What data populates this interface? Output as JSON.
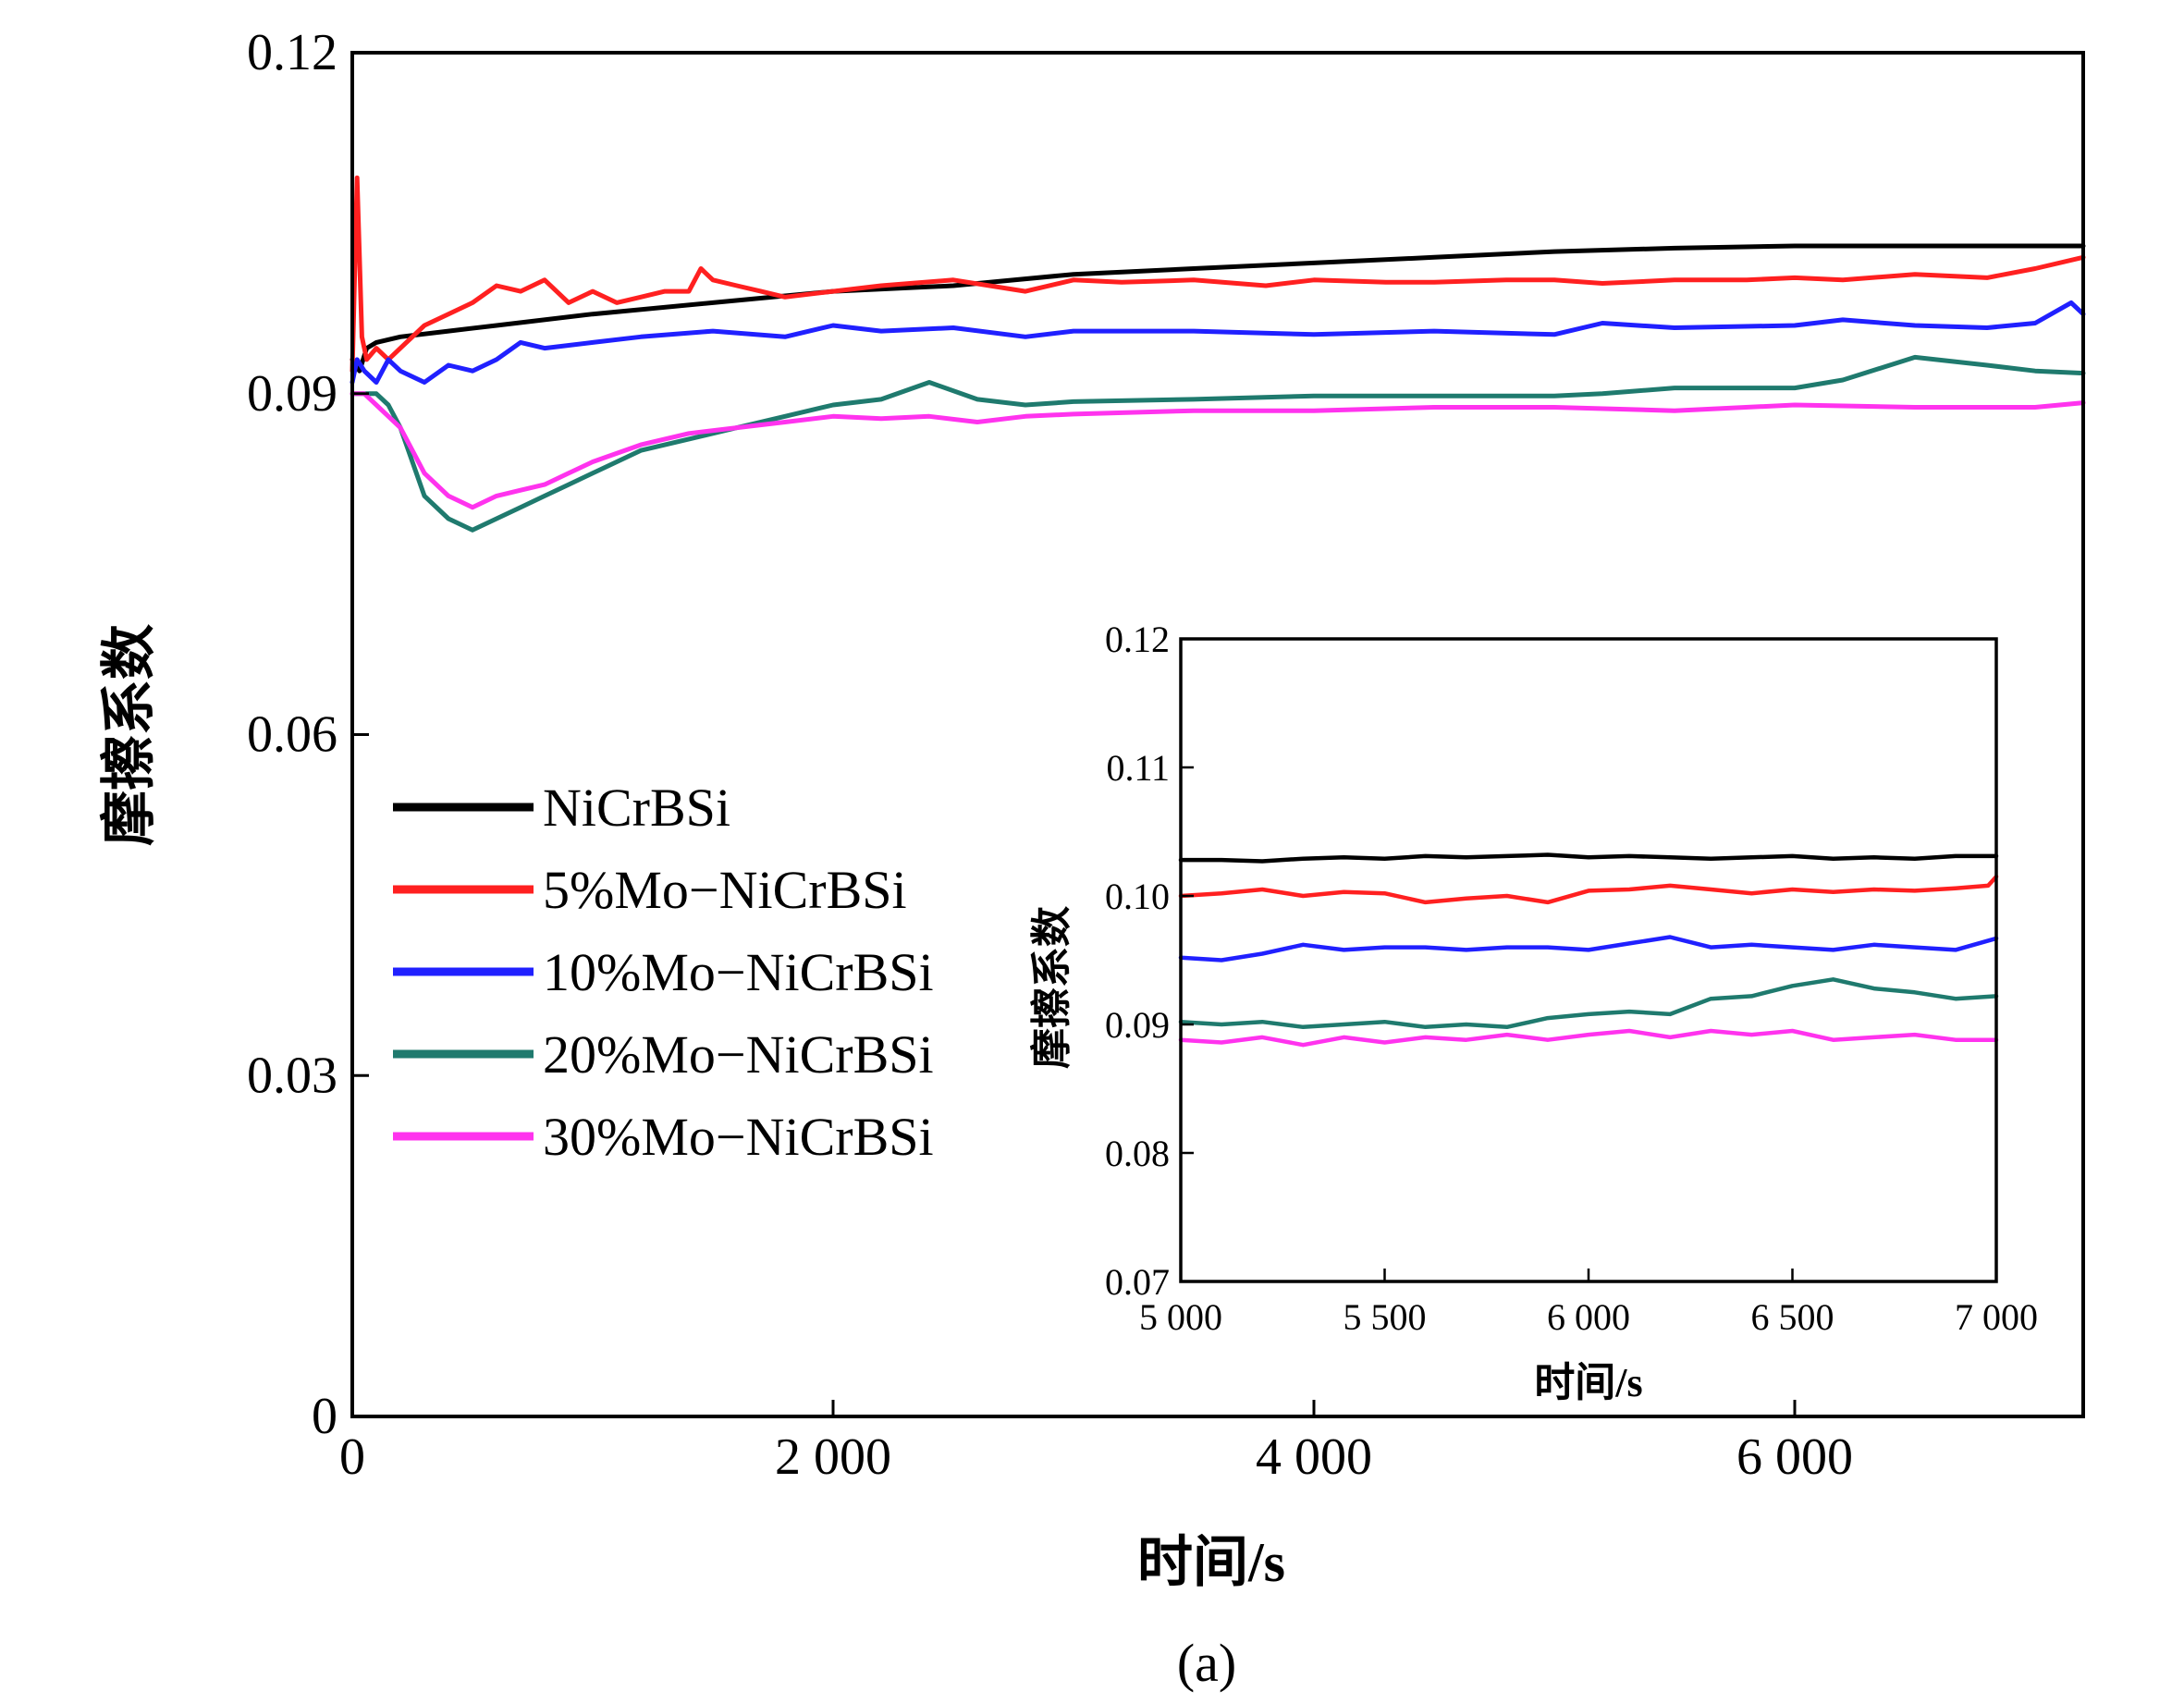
{
  "caption": "(a)",
  "chart_data": [
    {
      "id": "main",
      "type": "line",
      "xlabel": "时间/s",
      "ylabel": "摩擦系数",
      "xlim": [
        0,
        7200
      ],
      "ylim": [
        0,
        0.12
      ],
      "x_ticks": [
        0,
        2000,
        4000,
        6000
      ],
      "x_tick_labels": [
        "0",
        "2 000",
        "4 000",
        "6 000"
      ],
      "y_ticks": [
        0,
        0.03,
        0.06,
        0.09,
        0.12
      ],
      "y_tick_labels": [
        "0",
        "0.03",
        "0.06",
        "0.09",
        "0.12"
      ],
      "grid": false,
      "legend_position": "left-middle",
      "series": [
        {
          "name": "NiCrBSi",
          "color": "#000000",
          "x": [
            0,
            30,
            60,
            100,
            200,
            400,
            600,
            1000,
            1500,
            2000,
            2500,
            3000,
            3500,
            4000,
            4500,
            5000,
            5500,
            6000,
            6500,
            7000,
            7200
          ],
          "y": [
            0.093,
            0.092,
            0.094,
            0.0945,
            0.095,
            0.0955,
            0.096,
            0.097,
            0.098,
            0.099,
            0.0995,
            0.1005,
            0.101,
            0.1015,
            0.102,
            0.1025,
            0.1028,
            0.103,
            0.103,
            0.103,
            0.103
          ]
        },
        {
          "name": "5%Mo−NiCrBSi",
          "color": "#ff2020",
          "x": [
            0,
            20,
            40,
            60,
            100,
            150,
            200,
            300,
            400,
            500,
            600,
            700,
            800,
            900,
            1000,
            1100,
            1200,
            1300,
            1400,
            1450,
            1500,
            1600,
            1700,
            1800,
            2000,
            2200,
            2500,
            2800,
            3000,
            3200,
            3500,
            3800,
            4000,
            4300,
            4500,
            4800,
            5000,
            5200,
            5500,
            5800,
            6000,
            6200,
            6500,
            6800,
            7000,
            7200
          ],
          "y": [
            0.092,
            0.109,
            0.095,
            0.093,
            0.094,
            0.093,
            0.094,
            0.096,
            0.097,
            0.098,
            0.0995,
            0.099,
            0.1,
            0.098,
            0.099,
            0.098,
            0.0985,
            0.099,
            0.099,
            0.101,
            0.1,
            0.0995,
            0.099,
            0.0985,
            0.099,
            0.0995,
            0.1,
            0.099,
            0.1,
            0.0998,
            0.1,
            0.0995,
            0.1,
            0.0998,
            0.0998,
            0.1,
            0.1,
            0.0997,
            0.1,
            0.1,
            0.1002,
            0.1,
            0.1005,
            0.1002,
            0.101,
            0.102
          ]
        },
        {
          "name": "10%Mo−NiCrBSi",
          "color": "#2020ff",
          "x": [
            0,
            20,
            50,
            100,
            150,
            200,
            300,
            400,
            500,
            600,
            700,
            800,
            1000,
            1200,
            1500,
            1800,
            2000,
            2200,
            2500,
            2800,
            3000,
            3500,
            4000,
            4500,
            5000,
            5200,
            5500,
            6000,
            6200,
            6500,
            6800,
            7000,
            7150,
            7200
          ],
          "y": [
            0.091,
            0.093,
            0.092,
            0.091,
            0.093,
            0.092,
            0.091,
            0.0925,
            0.092,
            0.093,
            0.0945,
            0.094,
            0.0945,
            0.095,
            0.0955,
            0.095,
            0.096,
            0.0955,
            0.0958,
            0.095,
            0.0955,
            0.0955,
            0.0952,
            0.0955,
            0.0952,
            0.0962,
            0.0958,
            0.096,
            0.0965,
            0.096,
            0.0958,
            0.0962,
            0.098,
            0.097
          ]
        },
        {
          "name": "20%Mo−NiCrBSi",
          "color": "#1f7a6e",
          "x": [
            0,
            50,
            100,
            150,
            200,
            300,
            400,
            500,
            600,
            700,
            800,
            900,
            1000,
            1200,
            1400,
            1600,
            1800,
            2000,
            2200,
            2400,
            2600,
            2800,
            3000,
            3500,
            4000,
            4500,
            5000,
            5200,
            5500,
            6000,
            6200,
            6500,
            6800,
            7000,
            7200
          ],
          "y": [
            0.09,
            0.09,
            0.09,
            0.089,
            0.087,
            0.081,
            0.079,
            0.078,
            0.079,
            0.08,
            0.081,
            0.082,
            0.083,
            0.085,
            0.086,
            0.087,
            0.088,
            0.089,
            0.0895,
            0.091,
            0.0895,
            0.089,
            0.0893,
            0.0895,
            0.0898,
            0.0898,
            0.0898,
            0.09,
            0.0905,
            0.0905,
            0.0912,
            0.0932,
            0.0925,
            0.092,
            0.0918
          ]
        },
        {
          "name": "30%Mo−NiCrBSi",
          "color": "#ff33ee",
          "x": [
            0,
            50,
            100,
            150,
            200,
            300,
            400,
            500,
            600,
            700,
            800,
            900,
            1000,
            1200,
            1400,
            1600,
            1800,
            2000,
            2200,
            2400,
            2600,
            2800,
            3000,
            3500,
            4000,
            4500,
            5000,
            5500,
            6000,
            6500,
            7000,
            7200
          ],
          "y": [
            0.09,
            0.09,
            0.089,
            0.088,
            0.087,
            0.083,
            0.081,
            0.08,
            0.081,
            0.0815,
            0.082,
            0.083,
            0.084,
            0.0855,
            0.0865,
            0.087,
            0.0875,
            0.088,
            0.0878,
            0.088,
            0.0875,
            0.088,
            0.0882,
            0.0885,
            0.0885,
            0.0888,
            0.0888,
            0.0885,
            0.089,
            0.0888,
            0.0888,
            0.0892
          ]
        }
      ]
    },
    {
      "id": "inset",
      "type": "line",
      "xlabel": "时间/s",
      "ylabel": "摩擦系数",
      "xlim": [
        5000,
        7000
      ],
      "ylim": [
        0.07,
        0.12
      ],
      "x_ticks": [
        5000,
        5500,
        6000,
        6500,
        7000
      ],
      "x_tick_labels": [
        "5 000",
        "5 500",
        "6 000",
        "6 500",
        "7 000"
      ],
      "y_ticks": [
        0.07,
        0.08,
        0.09,
        0.1,
        0.11,
        0.12
      ],
      "y_tick_labels": [
        "0.07",
        "0.08",
        "0.09",
        "0.10",
        "0.11",
        "0.12"
      ],
      "grid": false,
      "series": [
        {
          "color": "#000000",
          "x": [
            5000,
            5100,
            5200,
            5300,
            5400,
            5500,
            5600,
            5700,
            5800,
            5900,
            6000,
            6100,
            6200,
            6300,
            6400,
            6500,
            6600,
            6700,
            6800,
            6900,
            7000
          ],
          "y": [
            0.1028,
            0.1028,
            0.1027,
            0.1029,
            0.103,
            0.1029,
            0.1031,
            0.103,
            0.1031,
            0.1032,
            0.103,
            0.1031,
            0.103,
            0.1029,
            0.103,
            0.1031,
            0.1029,
            0.103,
            0.1029,
            0.1031,
            0.1031
          ]
        },
        {
          "color": "#ff2020",
          "x": [
            5000,
            5100,
            5200,
            5300,
            5400,
            5500,
            5600,
            5700,
            5800,
            5900,
            6000,
            6100,
            6200,
            6300,
            6400,
            6500,
            6600,
            6700,
            6800,
            6900,
            6980,
            7000
          ],
          "y": [
            0.1,
            0.1002,
            0.1005,
            0.1,
            0.1003,
            0.1002,
            0.0995,
            0.0998,
            0.1,
            0.0995,
            0.1004,
            0.1005,
            0.1008,
            0.1005,
            0.1002,
            0.1005,
            0.1003,
            0.1005,
            0.1004,
            0.1006,
            0.1008,
            0.1015
          ]
        },
        {
          "color": "#2020ff",
          "x": [
            5000,
            5100,
            5200,
            5300,
            5400,
            5500,
            5600,
            5700,
            5800,
            5900,
            6000,
            6100,
            6200,
            6300,
            6400,
            6500,
            6600,
            6700,
            6800,
            6900,
            7000
          ],
          "y": [
            0.0952,
            0.095,
            0.0955,
            0.0962,
            0.0958,
            0.096,
            0.096,
            0.0958,
            0.096,
            0.096,
            0.0958,
            0.0963,
            0.0968,
            0.096,
            0.0962,
            0.096,
            0.0958,
            0.0962,
            0.096,
            0.0958,
            0.0967
          ]
        },
        {
          "color": "#1f7a6e",
          "x": [
            5000,
            5100,
            5200,
            5300,
            5400,
            5500,
            5600,
            5700,
            5800,
            5900,
            6000,
            6100,
            6200,
            6300,
            6400,
            6500,
            6600,
            6700,
            6800,
            6900,
            7000
          ],
          "y": [
            0.0902,
            0.09,
            0.0902,
            0.0898,
            0.09,
            0.0902,
            0.0898,
            0.09,
            0.0898,
            0.0905,
            0.0908,
            0.091,
            0.0908,
            0.092,
            0.0922,
            0.093,
            0.0935,
            0.0928,
            0.0925,
            0.092,
            0.0922
          ]
        },
        {
          "color": "#ff33ee",
          "x": [
            5000,
            5100,
            5200,
            5300,
            5400,
            5500,
            5600,
            5700,
            5800,
            5900,
            6000,
            6100,
            6200,
            6300,
            6400,
            6500,
            6600,
            6700,
            6800,
            6900,
            7000
          ],
          "y": [
            0.0888,
            0.0886,
            0.089,
            0.0884,
            0.089,
            0.0886,
            0.089,
            0.0888,
            0.0892,
            0.0888,
            0.0892,
            0.0895,
            0.089,
            0.0895,
            0.0892,
            0.0895,
            0.0888,
            0.089,
            0.0892,
            0.0888,
            0.0888
          ]
        }
      ]
    }
  ]
}
